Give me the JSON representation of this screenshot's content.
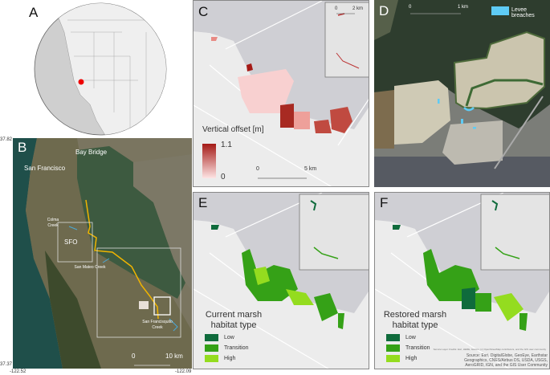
{
  "panels": {
    "A": {
      "label": "A"
    },
    "B": {
      "label": "B",
      "places": [
        "Bay Bridge",
        "San Francisco",
        "Colma Creek",
        "SFO",
        "San Mateo Creek",
        "San Francisquito Creek"
      ],
      "scale": {
        "zero": "0",
        "end": "10 km"
      },
      "coords": {
        "lat_top": "37.82",
        "lat_bottom": "37.37",
        "lon_left": "-122.52",
        "lon_right": "-122.09"
      }
    },
    "C": {
      "label": "C",
      "legend_title": "Vertical offset [m]",
      "legend_max": "1.1",
      "legend_min": "0",
      "scale": {
        "zero": "0",
        "end": "5 km"
      },
      "inset_scale": {
        "zero": "0",
        "end": "2 km"
      },
      "colors": {
        "low": "#fde4e4",
        "high": "#a51a16"
      }
    },
    "D": {
      "label": "D",
      "legend": "Levee breaches",
      "scale": {
        "zero": "0",
        "end": "1 km"
      },
      "breach_color": "#5ecbf5"
    },
    "E": {
      "label": "E",
      "legend_title_1": "Current marsh",
      "legend_title_2": "habitat type",
      "classes": [
        {
          "name": "Low",
          "color": "#0f6b3c"
        },
        {
          "name": "Transition",
          "color": "#35a117"
        },
        {
          "name": "High",
          "color": "#94dc1f"
        }
      ]
    },
    "F": {
      "label": "F",
      "legend_title_1": "Restored marsh",
      "legend_title_2": "habitat type",
      "classes": [
        {
          "name": "Low",
          "color": "#0f6b3c"
        },
        {
          "name": "Transition",
          "color": "#35a117"
        },
        {
          "name": "High",
          "color": "#94dc1f"
        }
      ],
      "attribution_1": "Service Layer Credits: Esri, HERE, Garmin, (c) OpenStreetMap contributors, and the GIS user community",
      "attribution_2": "Source: Esri, DigitalGlobe, GeoEye, Earthstar Geographics, CNES/Airbus DS, USDA, USGS, AeroGRID, IGN, and the GIS User Community"
    }
  }
}
